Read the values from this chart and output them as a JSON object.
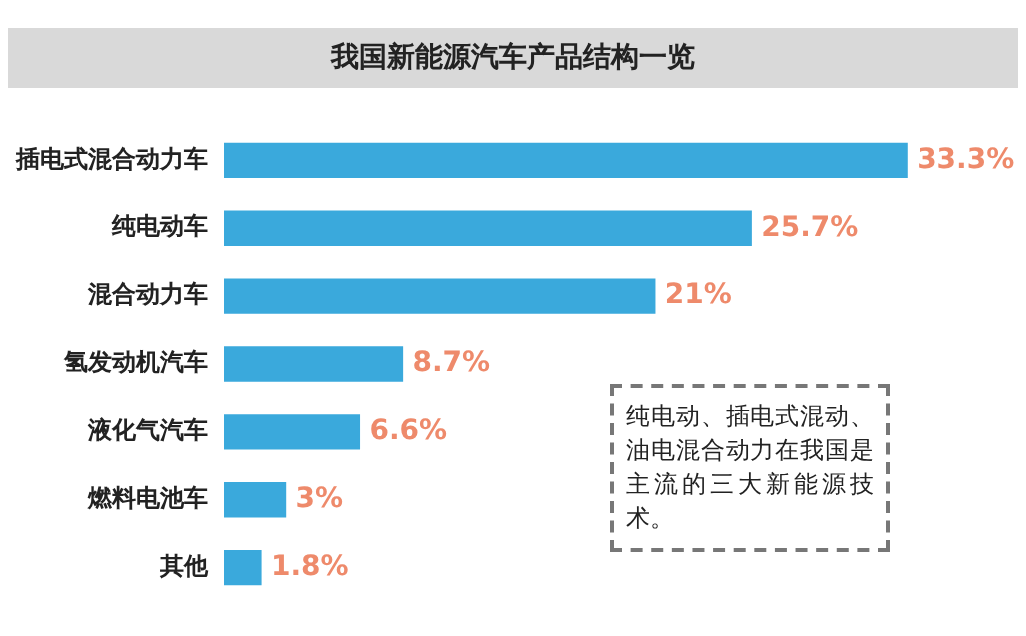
{
  "chart_data": {
    "type": "bar",
    "orientation": "horizontal",
    "title": "我国新能源汽车产品结构一览",
    "categories": [
      "插电式混合动力车",
      "纯电动车",
      "混合动力车",
      "氢发动机汽车",
      "液化气汽车",
      "燃料电池车",
      "其他"
    ],
    "values": [
      33.3,
      25.7,
      21,
      8.7,
      6.6,
      3,
      1.8
    ],
    "value_labels": [
      "33.3%",
      "25.7%",
      "21%",
      "8.7%",
      "6.6%",
      "3%",
      "1.8%"
    ],
    "color": "#3aa9dc",
    "annotations": [
      "纯电动、插电式混动、油电混合动力在我国是主流的三大新能源技术。"
    ]
  }
}
